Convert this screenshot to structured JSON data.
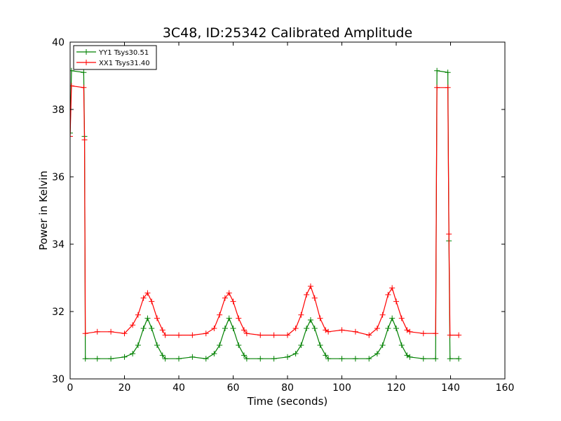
{
  "chart_data": {
    "type": "line",
    "title": "3C48, ID:25342 Calibrated Amplitude",
    "xlabel": "Time (seconds)",
    "ylabel": "Power in Kelvin",
    "xlim": [
      0,
      160
    ],
    "ylim": [
      30,
      40
    ],
    "xticks": [
      "0",
      "20",
      "40",
      "60",
      "80",
      "100",
      "120",
      "140",
      "160"
    ],
    "yticks": [
      "30",
      "32",
      "34",
      "36",
      "38",
      "40"
    ],
    "grid": false,
    "legend_position": "top-left",
    "series": [
      {
        "name": "YY1 Tsys30.51",
        "color": "#008000",
        "marker": "plus",
        "x": [
          0,
          0.5,
          5,
          5.3,
          5.6,
          10,
          15,
          20,
          23,
          25,
          27,
          28.5,
          30,
          32,
          34,
          35,
          40,
          45,
          50,
          53,
          55,
          57,
          58.5,
          60,
          62,
          64,
          65,
          70,
          75,
          80,
          83,
          85,
          87,
          88.5,
          90,
          92,
          94,
          95,
          100,
          105,
          110,
          113,
          115,
          117,
          118.5,
          120,
          122,
          124,
          125,
          130,
          134.5,
          135,
          139,
          139.4,
          139.8,
          143
        ],
        "y": [
          37.3,
          39.15,
          39.1,
          37.2,
          30.6,
          30.6,
          30.6,
          30.65,
          30.75,
          31.0,
          31.5,
          31.8,
          31.5,
          31.0,
          30.7,
          30.6,
          30.6,
          30.65,
          30.6,
          30.75,
          31.0,
          31.5,
          31.8,
          31.5,
          31.0,
          30.7,
          30.6,
          30.6,
          30.6,
          30.65,
          30.75,
          31.0,
          31.5,
          31.75,
          31.5,
          31.0,
          30.7,
          30.6,
          30.6,
          30.6,
          30.6,
          30.75,
          31.0,
          31.5,
          31.8,
          31.5,
          31.0,
          30.7,
          30.65,
          30.6,
          30.6,
          39.15,
          39.1,
          34.1,
          30.6,
          30.6
        ]
      },
      {
        "name": "XX1 Tsys31.40",
        "color": "#ff0000",
        "marker": "plus",
        "x": [
          0,
          0.5,
          5,
          5.3,
          5.6,
          10,
          15,
          20,
          23,
          25,
          27,
          28.5,
          30,
          32,
          34,
          35,
          40,
          45,
          50,
          53,
          55,
          57,
          58.5,
          60,
          62,
          64,
          65,
          70,
          75,
          80,
          83,
          85,
          87,
          88.5,
          90,
          92,
          94,
          95,
          100,
          105,
          110,
          113,
          115,
          117,
          118.5,
          120,
          122,
          124,
          125,
          130,
          134.5,
          135,
          139,
          139.4,
          139.8,
          143
        ],
        "y": [
          37.2,
          38.7,
          38.65,
          37.1,
          31.35,
          31.4,
          31.4,
          31.35,
          31.6,
          31.9,
          32.4,
          32.55,
          32.3,
          31.8,
          31.45,
          31.3,
          31.3,
          31.3,
          31.35,
          31.5,
          31.9,
          32.4,
          32.55,
          32.3,
          31.8,
          31.45,
          31.35,
          31.3,
          31.3,
          31.3,
          31.5,
          31.9,
          32.5,
          32.75,
          32.4,
          31.8,
          31.45,
          31.4,
          31.45,
          31.4,
          31.3,
          31.5,
          31.9,
          32.5,
          32.7,
          32.3,
          31.8,
          31.45,
          31.4,
          31.35,
          31.35,
          38.65,
          38.65,
          34.3,
          31.3,
          31.3
        ]
      }
    ]
  }
}
